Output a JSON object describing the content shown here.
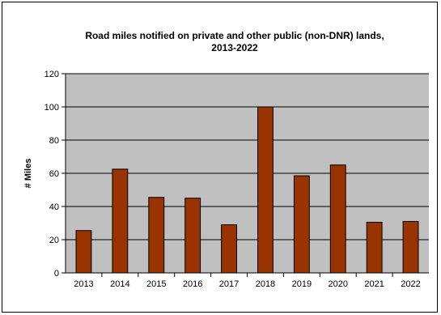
{
  "chart_data": {
    "type": "bar",
    "title_lines": [
      "Road miles notified on private and other public (non-DNR) lands,",
      "2013-2022"
    ],
    "xlabel": "",
    "ylabel": "# Miles",
    "categories": [
      "2013",
      "2014",
      "2015",
      "2016",
      "2017",
      "2018",
      "2019",
      "2020",
      "2021",
      "2022"
    ],
    "values": [
      25.5,
      62.5,
      45.5,
      45,
      29,
      100,
      58.5,
      65,
      30.5,
      31
    ],
    "ylim": [
      0,
      120
    ],
    "yticks": [
      0,
      20,
      40,
      60,
      80,
      100,
      120
    ],
    "grid": true,
    "legend": "none",
    "colors": {
      "bar_fill": "#993300",
      "bar_stroke": "#000000",
      "plot_background": "#c0c0c0",
      "gridline": "#000000"
    }
  }
}
